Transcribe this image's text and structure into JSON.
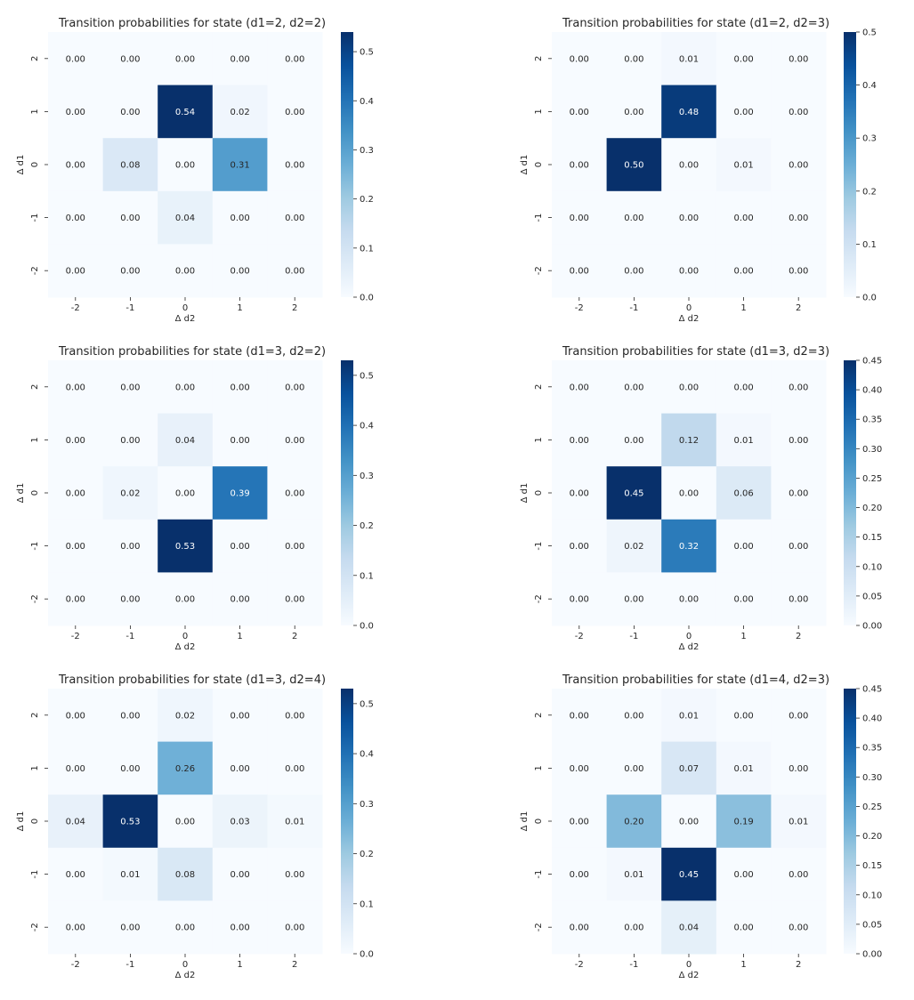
{
  "chart_data": [
    {
      "type": "heatmap",
      "title": "Transition probabilities for state (d1=2, d2=2)",
      "xlabel": "Δ d2",
      "ylabel": "Δ d1",
      "x": [
        "-2",
        "-1",
        "0",
        "1",
        "2"
      ],
      "y": [
        "2",
        "1",
        "0",
        "-1",
        "-2"
      ],
      "values": [
        [
          0.0,
          0.0,
          0.0,
          0.0,
          0.0
        ],
        [
          0.0,
          0.0,
          0.54,
          0.02,
          0.0
        ],
        [
          0.0,
          0.08,
          0.0,
          0.31,
          0.0
        ],
        [
          0.0,
          0.0,
          0.04,
          0.0,
          0.0
        ],
        [
          0.0,
          0.0,
          0.0,
          0.0,
          0.0
        ]
      ],
      "colorbar_range": [
        0,
        0.54
      ],
      "colorbar_ticks": [
        "0.0",
        "0.1",
        "0.2",
        "0.3",
        "0.4",
        "0.5"
      ],
      "colormap": "Blues"
    },
    {
      "type": "heatmap",
      "title": "Transition probabilities for state (d1=2, d2=3)",
      "xlabel": "Δ d2",
      "ylabel": "Δ d1",
      "x": [
        "-2",
        "-1",
        "0",
        "1",
        "2"
      ],
      "y": [
        "2",
        "1",
        "0",
        "-1",
        "-2"
      ],
      "values": [
        [
          0.0,
          0.0,
          0.01,
          0.0,
          0.0
        ],
        [
          0.0,
          0.0,
          0.48,
          0.0,
          0.0
        ],
        [
          0.0,
          0.5,
          0.0,
          0.01,
          0.0
        ],
        [
          0.0,
          0.0,
          0.0,
          0.0,
          0.0
        ],
        [
          0.0,
          0.0,
          0.0,
          0.0,
          0.0
        ]
      ],
      "colorbar_range": [
        0,
        0.5
      ],
      "colorbar_ticks": [
        "0.0",
        "0.1",
        "0.2",
        "0.3",
        "0.4",
        "0.5"
      ],
      "colormap": "Blues"
    },
    {
      "type": "heatmap",
      "title": "Transition probabilities for state (d1=3, d2=2)",
      "xlabel": "Δ d2",
      "ylabel": "Δ d1",
      "x": [
        "-2",
        "-1",
        "0",
        "1",
        "2"
      ],
      "y": [
        "2",
        "1",
        "0",
        "-1",
        "-2"
      ],
      "values": [
        [
          0.0,
          0.0,
          0.0,
          0.0,
          0.0
        ],
        [
          0.0,
          0.0,
          0.04,
          0.0,
          0.0
        ],
        [
          0.0,
          0.02,
          0.0,
          0.39,
          0.0
        ],
        [
          0.0,
          0.0,
          0.53,
          0.0,
          0.0
        ],
        [
          0.0,
          0.0,
          0.0,
          0.0,
          0.0
        ]
      ],
      "colorbar_range": [
        0,
        0.53
      ],
      "colorbar_ticks": [
        "0.0",
        "0.1",
        "0.2",
        "0.3",
        "0.4",
        "0.5"
      ],
      "colormap": "Blues"
    },
    {
      "type": "heatmap",
      "title": "Transition probabilities for state (d1=3, d2=3)",
      "xlabel": "Δ d2",
      "ylabel": "Δ d1",
      "x": [
        "-2",
        "-1",
        "0",
        "1",
        "2"
      ],
      "y": [
        "2",
        "1",
        "0",
        "-1",
        "-2"
      ],
      "values": [
        [
          0.0,
          0.0,
          0.0,
          0.0,
          0.0
        ],
        [
          0.0,
          0.0,
          0.12,
          0.01,
          0.0
        ],
        [
          0.0,
          0.45,
          0.0,
          0.06,
          0.0
        ],
        [
          0.0,
          0.02,
          0.32,
          0.0,
          0.0
        ],
        [
          0.0,
          0.0,
          0.0,
          0.0,
          0.0
        ]
      ],
      "colorbar_range": [
        0,
        0.45
      ],
      "colorbar_ticks": [
        "0.00",
        "0.05",
        "0.10",
        "0.15",
        "0.20",
        "0.25",
        "0.30",
        "0.35",
        "0.40",
        "0.45"
      ],
      "colormap": "Blues"
    },
    {
      "type": "heatmap",
      "title": "Transition probabilities for state (d1=3, d2=4)",
      "xlabel": "Δ d2",
      "ylabel": "Δ d1",
      "x": [
        "-2",
        "-1",
        "0",
        "1",
        "2"
      ],
      "y": [
        "2",
        "1",
        "0",
        "-1",
        "-2"
      ],
      "values": [
        [
          0.0,
          0.0,
          0.02,
          0.0,
          0.0
        ],
        [
          0.0,
          0.0,
          0.26,
          0.0,
          0.0
        ],
        [
          0.04,
          0.53,
          0.0,
          0.03,
          0.01
        ],
        [
          0.0,
          0.01,
          0.08,
          0.0,
          0.0
        ],
        [
          0.0,
          0.0,
          0.0,
          0.0,
          0.0
        ]
      ],
      "colorbar_range": [
        0,
        0.53
      ],
      "colorbar_ticks": [
        "0.0",
        "0.1",
        "0.2",
        "0.3",
        "0.4",
        "0.5"
      ],
      "colormap": "Blues"
    },
    {
      "type": "heatmap",
      "title": "Transition probabilities for state (d1=4, d2=3)",
      "xlabel": "Δ d2",
      "ylabel": "Δ d1",
      "x": [
        "-2",
        "-1",
        "0",
        "1",
        "2"
      ],
      "y": [
        "2",
        "1",
        "0",
        "-1",
        "-2"
      ],
      "values": [
        [
          0.0,
          0.0,
          0.01,
          0.0,
          0.0
        ],
        [
          0.0,
          0.0,
          0.07,
          0.01,
          0.0
        ],
        [
          0.0,
          0.2,
          0.0,
          0.19,
          0.01
        ],
        [
          0.0,
          0.01,
          0.45,
          0.0,
          0.0
        ],
        [
          0.0,
          0.0,
          0.04,
          0.0,
          0.0
        ]
      ],
      "colorbar_range": [
        0,
        0.45
      ],
      "colorbar_ticks": [
        "0.00",
        "0.05",
        "0.10",
        "0.15",
        "0.20",
        "0.25",
        "0.30",
        "0.35",
        "0.40",
        "0.45"
      ],
      "colormap": "Blues"
    }
  ]
}
